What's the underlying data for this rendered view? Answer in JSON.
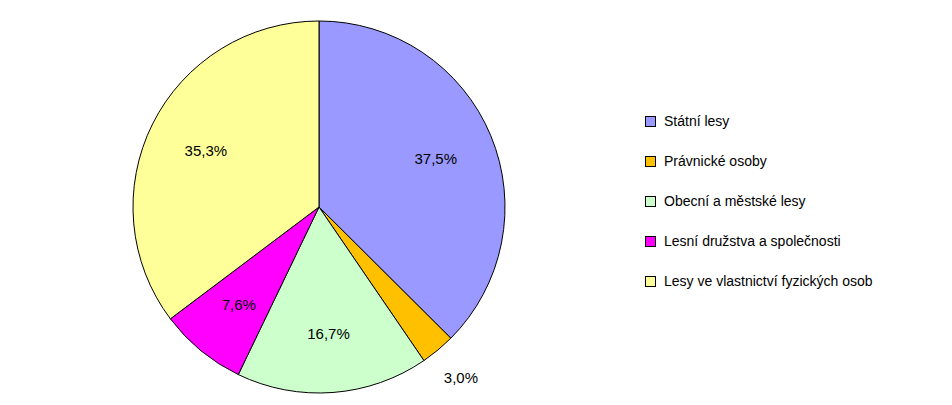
{
  "chart_data": {
    "type": "pie",
    "categories": [
      "Státní lesy",
      "Právnické osoby",
      "Obecní a městské lesy",
      "Lesní družstva a společnosti",
      "Lesy ve vlastnictví fyzických osob"
    ],
    "values": [
      37.5,
      3.0,
      16.7,
      7.6,
      35.3
    ],
    "value_labels": [
      "37,5%",
      "3,0%",
      "16,7%",
      "7,6%",
      "35,3%"
    ],
    "colors": [
      "#9999ff",
      "#ffc000",
      "#ccffcc",
      "#ff00ff",
      "#ffff99"
    ],
    "data_labels": true,
    "legend": "right"
  }
}
